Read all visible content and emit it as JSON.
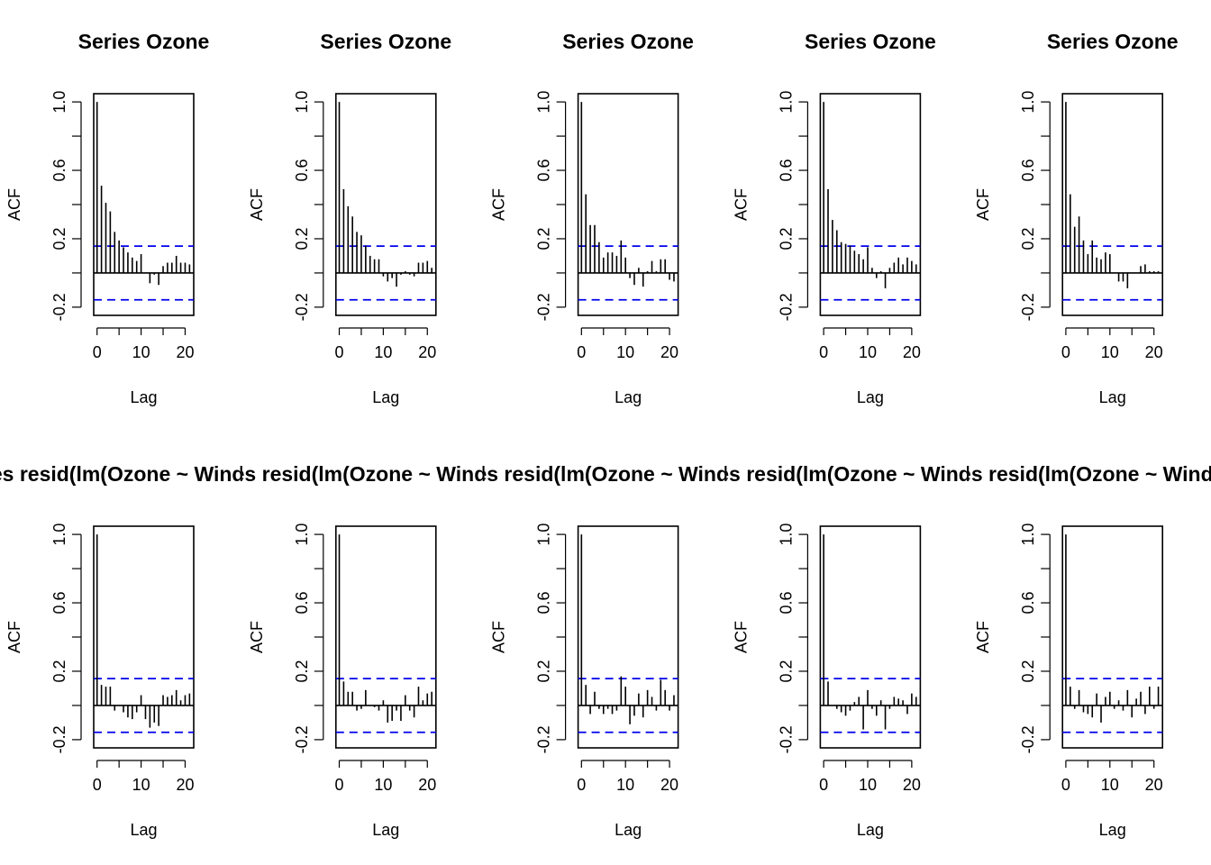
{
  "chart_data": [
    {
      "type": "bar",
      "title": "Series  Ozone",
      "xlabel": "Lag",
      "ylabel": "ACF",
      "xlim": [
        0,
        21
      ],
      "ylim": [
        -0.2,
        1.0
      ],
      "yticks": [
        "-0.2",
        "0.2",
        "0.6",
        "1.0"
      ],
      "xticks": [
        "0",
        "10",
        "20"
      ],
      "ci": 0.157,
      "lags": [
        0,
        1,
        2,
        3,
        4,
        5,
        6,
        7,
        8,
        9,
        10,
        11,
        12,
        13,
        14,
        15,
        16,
        17,
        18,
        19,
        20,
        21
      ],
      "values": [
        1.0,
        0.51,
        0.41,
        0.36,
        0.24,
        0.19,
        0.15,
        0.12,
        0.09,
        0.07,
        0.11,
        0.0,
        -0.06,
        -0.01,
        -0.07,
        0.04,
        0.06,
        0.06,
        0.1,
        0.06,
        0.06,
        0.05
      ]
    },
    {
      "type": "bar",
      "title": "Series  Ozone",
      "xlabel": "Lag",
      "ylabel": "ACF",
      "xlim": [
        0,
        21
      ],
      "ylim": [
        -0.2,
        1.0
      ],
      "yticks": [
        "-0.2",
        "0.2",
        "0.6",
        "1.0"
      ],
      "xticks": [
        "0",
        "10",
        "20"
      ],
      "ci": 0.157,
      "lags": [
        0,
        1,
        2,
        3,
        4,
        5,
        6,
        7,
        8,
        9,
        10,
        11,
        12,
        13,
        14,
        15,
        16,
        17,
        18,
        19,
        20,
        21
      ],
      "values": [
        1.0,
        0.49,
        0.39,
        0.33,
        0.24,
        0.22,
        0.16,
        0.1,
        0.08,
        0.08,
        -0.02,
        -0.05,
        -0.03,
        -0.08,
        -0.01,
        0.01,
        -0.01,
        -0.02,
        0.06,
        0.06,
        0.07,
        0.03
      ]
    },
    {
      "type": "bar",
      "title": "Series  Ozone",
      "xlabel": "Lag",
      "ylabel": "ACF",
      "xlim": [
        0,
        21
      ],
      "ylim": [
        -0.2,
        1.0
      ],
      "yticks": [
        "-0.2",
        "0.2",
        "0.6",
        "1.0"
      ],
      "xticks": [
        "0",
        "10",
        "20"
      ],
      "ci": 0.157,
      "lags": [
        0,
        1,
        2,
        3,
        4,
        5,
        6,
        7,
        8,
        9,
        10,
        11,
        12,
        13,
        14,
        15,
        16,
        17,
        18,
        19,
        20,
        21
      ],
      "values": [
        1.0,
        0.46,
        0.28,
        0.28,
        0.18,
        0.09,
        0.12,
        0.12,
        0.1,
        0.19,
        0.09,
        -0.03,
        -0.07,
        0.03,
        -0.08,
        0.01,
        0.07,
        0.01,
        0.08,
        0.08,
        -0.04,
        -0.05
      ]
    },
    {
      "type": "bar",
      "title": "Series  Ozone",
      "xlabel": "Lag",
      "ylabel": "ACF",
      "xlim": [
        0,
        21
      ],
      "ylim": [
        -0.2,
        1.0
      ],
      "yticks": [
        "-0.2",
        "0.2",
        "0.6",
        "1.0"
      ],
      "xticks": [
        "0",
        "10",
        "20"
      ],
      "ci": 0.157,
      "lags": [
        0,
        1,
        2,
        3,
        4,
        5,
        6,
        7,
        8,
        9,
        10,
        11,
        12,
        13,
        14,
        15,
        16,
        17,
        18,
        19,
        20,
        21
      ],
      "values": [
        1.0,
        0.49,
        0.31,
        0.25,
        0.18,
        0.17,
        0.16,
        0.13,
        0.11,
        0.08,
        0.15,
        0.03,
        -0.03,
        0.01,
        -0.09,
        0.03,
        0.06,
        0.09,
        0.05,
        0.09,
        0.07,
        0.05
      ]
    },
    {
      "type": "bar",
      "title": "Series  Ozone",
      "xlabel": "Lag",
      "ylabel": "ACF",
      "xlim": [
        0,
        21
      ],
      "ylim": [
        -0.2,
        1.0
      ],
      "yticks": [
        "-0.2",
        "0.2",
        "0.6",
        "1.0"
      ],
      "xticks": [
        "0",
        "10",
        "20"
      ],
      "ci": 0.157,
      "lags": [
        0,
        1,
        2,
        3,
        4,
        5,
        6,
        7,
        8,
        9,
        10,
        11,
        12,
        13,
        14,
        15,
        16,
        17,
        18,
        19,
        20,
        21
      ],
      "values": [
        1.0,
        0.46,
        0.27,
        0.33,
        0.19,
        0.11,
        0.19,
        0.09,
        0.08,
        0.12,
        0.11,
        0.0,
        -0.05,
        -0.05,
        -0.09,
        0.0,
        0.0,
        0.04,
        0.05,
        0.01,
        0.01,
        0.01
      ]
    },
    {
      "type": "bar",
      "title": "Series  resid(lm(Ozone ~ Wind + Temp))",
      "xlabel": "Lag",
      "ylabel": "ACF",
      "xlim": [
        0,
        21
      ],
      "ylim": [
        -0.2,
        1.0
      ],
      "yticks": [
        "-0.2",
        "0.2",
        "0.6",
        "1.0"
      ],
      "xticks": [
        "0",
        "10",
        "20"
      ],
      "ci": 0.157,
      "lags": [
        0,
        1,
        2,
        3,
        4,
        5,
        6,
        7,
        8,
        9,
        10,
        11,
        12,
        13,
        14,
        15,
        16,
        17,
        18,
        19,
        20,
        21
      ],
      "values": [
        1.0,
        0.12,
        0.11,
        0.11,
        -0.03,
        0.0,
        -0.04,
        -0.07,
        -0.08,
        -0.04,
        0.06,
        -0.08,
        -0.13,
        -0.1,
        -0.12,
        0.06,
        0.05,
        0.06,
        0.09,
        0.03,
        0.06,
        0.07
      ]
    },
    {
      "type": "bar",
      "title": "Series  resid(lm(Ozone ~ Wind + Temp))",
      "xlabel": "Lag",
      "ylabel": "ACF",
      "xlim": [
        0,
        21
      ],
      "ylim": [
        -0.2,
        1.0
      ],
      "yticks": [
        "-0.2",
        "0.2",
        "0.6",
        "1.0"
      ],
      "xticks": [
        "0",
        "10",
        "20"
      ],
      "ci": 0.157,
      "lags": [
        0,
        1,
        2,
        3,
        4,
        5,
        6,
        7,
        8,
        9,
        10,
        11,
        12,
        13,
        14,
        15,
        16,
        17,
        18,
        19,
        20,
        21
      ],
      "values": [
        1.0,
        0.14,
        0.08,
        0.08,
        -0.03,
        -0.02,
        0.09,
        0.0,
        -0.01,
        -0.03,
        0.03,
        -0.1,
        -0.09,
        -0.03,
        -0.09,
        0.06,
        -0.03,
        -0.07,
        0.11,
        0.03,
        0.07,
        0.08
      ]
    },
    {
      "type": "bar",
      "title": "Series  resid(lm(Ozone ~ Wind + Temp))",
      "xlabel": "Lag",
      "ylabel": "ACF",
      "xlim": [
        0,
        21
      ],
      "ylim": [
        -0.2,
        1.0
      ],
      "yticks": [
        "-0.2",
        "0.2",
        "0.6",
        "1.0"
      ],
      "xticks": [
        "0",
        "10",
        "20"
      ],
      "ci": 0.157,
      "lags": [
        0,
        1,
        2,
        3,
        4,
        5,
        6,
        7,
        8,
        9,
        10,
        11,
        12,
        13,
        14,
        15,
        16,
        17,
        18,
        19,
        20,
        21
      ],
      "values": [
        1.0,
        0.12,
        -0.05,
        0.08,
        -0.02,
        -0.05,
        -0.02,
        -0.05,
        -0.03,
        0.17,
        0.11,
        -0.11,
        -0.06,
        0.07,
        -0.07,
        0.09,
        0.05,
        -0.03,
        0.15,
        0.09,
        -0.03,
        0.06
      ]
    },
    {
      "type": "bar",
      "title": "Series  resid(lm(Ozone ~ Wind + Temp))",
      "xlabel": "Lag",
      "ylabel": "ACF",
      "xlim": [
        0,
        21
      ],
      "ylim": [
        -0.2,
        1.0
      ],
      "yticks": [
        "-0.2",
        "0.2",
        "0.6",
        "1.0"
      ],
      "xticks": [
        "0",
        "10",
        "20"
      ],
      "ci": 0.157,
      "lags": [
        0,
        1,
        2,
        3,
        4,
        5,
        6,
        7,
        8,
        9,
        10,
        11,
        12,
        13,
        14,
        15,
        16,
        17,
        18,
        19,
        20,
        21
      ],
      "values": [
        1.0,
        0.14,
        0.0,
        -0.02,
        -0.04,
        -0.06,
        -0.03,
        0.02,
        0.05,
        -0.14,
        0.09,
        -0.02,
        -0.06,
        0.03,
        -0.14,
        -0.02,
        0.05,
        0.04,
        0.03,
        -0.05,
        0.07,
        0.05
      ]
    },
    {
      "type": "bar",
      "title": "Series  resid(lm(Ozone ~ Wind + Temp))",
      "xlabel": "Lag",
      "ylabel": "ACF",
      "xlim": [
        0,
        21
      ],
      "ylim": [
        -0.2,
        1.0
      ],
      "yticks": [
        "-0.2",
        "0.2",
        "0.6",
        "1.0"
      ],
      "xticks": [
        "0",
        "10",
        "20"
      ],
      "ci": 0.157,
      "lags": [
        0,
        1,
        2,
        3,
        4,
        5,
        6,
        7,
        8,
        9,
        10,
        11,
        12,
        13,
        14,
        15,
        16,
        17,
        18,
        19,
        20,
        21
      ],
      "values": [
        1.0,
        0.11,
        -0.02,
        0.09,
        -0.04,
        -0.05,
        -0.07,
        0.07,
        -0.1,
        0.05,
        0.08,
        -0.02,
        0.03,
        -0.03,
        0.09,
        -0.07,
        0.04,
        0.08,
        -0.05,
        0.11,
        -0.02,
        0.11
      ]
    }
  ]
}
